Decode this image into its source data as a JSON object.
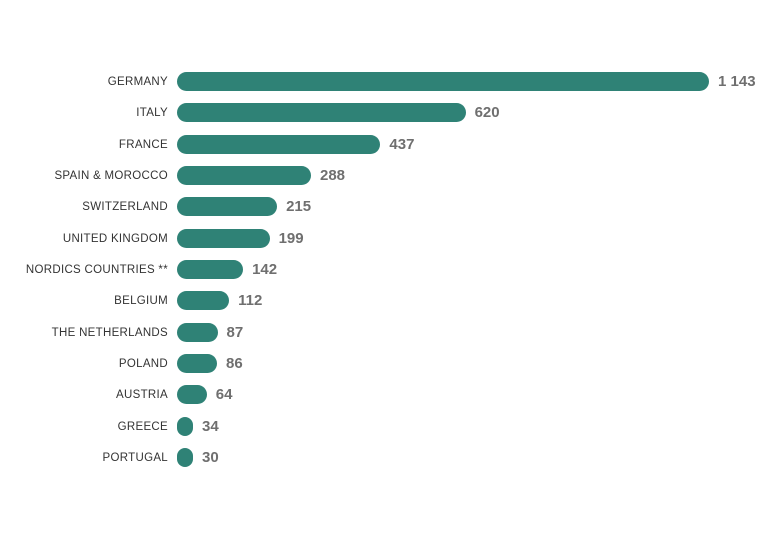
{
  "chart_data": {
    "type": "bar",
    "orientation": "horizontal",
    "categories": [
      "GERMANY",
      "ITALY",
      "FRANCE",
      "SPAIN & MOROCCO",
      "SWITZERLAND",
      "UNITED KINGDOM",
      "NORDICS COUNTRIES **",
      "BELGIUM",
      "THE NETHERLANDS",
      "POLAND",
      "AUSTRIA",
      "GREECE",
      "PORTUGAL"
    ],
    "values": [
      1143,
      620,
      437,
      288,
      215,
      199,
      142,
      112,
      87,
      86,
      64,
      34,
      30
    ],
    "value_labels": [
      "1 143",
      "620",
      "437",
      "288",
      "215",
      "199",
      "142",
      "112",
      "87",
      "86",
      "64",
      "34",
      "30"
    ],
    "xlim": [
      0,
      1143
    ],
    "grid": false,
    "legend": "none",
    "bar_color": "#2f8276",
    "label_color": "#6f6f6f"
  }
}
